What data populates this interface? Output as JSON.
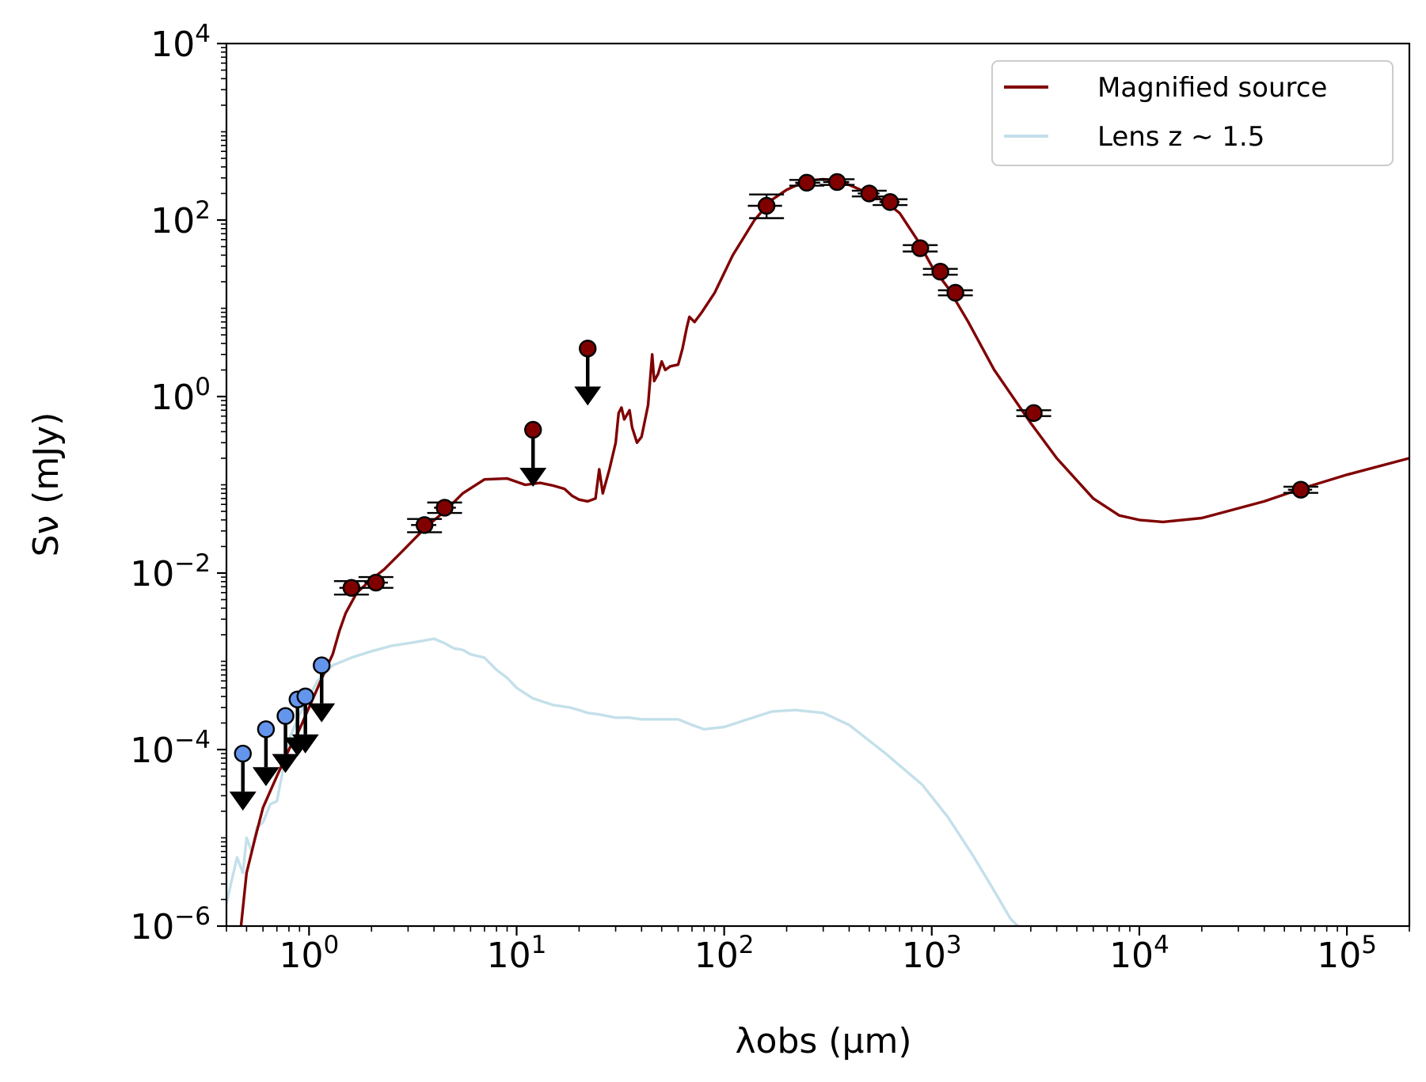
{
  "chart_data": {
    "type": "line",
    "x_scale": "log",
    "y_scale": "log",
    "xlim": [
      0.4,
      200000
    ],
    "ylim": [
      1e-06,
      10000
    ],
    "xlabel": "λobs (μm)",
    "ylabel": "Sν (mJy)",
    "x_ticks": [
      {
        "base": "10",
        "exp": "0",
        "value": 1
      },
      {
        "base": "10",
        "exp": "1",
        "value": 10
      },
      {
        "base": "10",
        "exp": "2",
        "value": 100
      },
      {
        "base": "10",
        "exp": "3",
        "value": 1000
      },
      {
        "base": "10",
        "exp": "4",
        "value": 10000
      },
      {
        "base": "10",
        "exp": "5",
        "value": 100000
      }
    ],
    "y_ticks": [
      {
        "base": "10",
        "exp": "−6",
        "value": 1e-06
      },
      {
        "base": "10",
        "exp": "−4",
        "value": 0.0001
      },
      {
        "base": "10",
        "exp": "−2",
        "value": 0.01
      },
      {
        "base": "10",
        "exp": "0",
        "value": 1
      },
      {
        "base": "10",
        "exp": "2",
        "value": 100
      },
      {
        "base": "10",
        "exp": "4",
        "value": 10000
      }
    ],
    "grid": false,
    "legend_position": "top-right",
    "series": [
      {
        "name": "Magnified source",
        "color": "#800000",
        "points": [
          [
            0.47,
            1e-06
          ],
          [
            0.5,
            4e-06
          ],
          [
            0.55,
            1e-05
          ],
          [
            0.6,
            2.2e-05
          ],
          [
            0.7,
            5e-05
          ],
          [
            0.8,
            0.0001
          ],
          [
            0.9,
            0.00017
          ],
          [
            1.0,
            0.0003
          ],
          [
            1.1,
            0.0005
          ],
          [
            1.2,
            0.0008
          ],
          [
            1.3,
            0.0012
          ],
          [
            1.4,
            0.0022
          ],
          [
            1.5,
            0.0035
          ],
          [
            1.7,
            0.006
          ],
          [
            2.0,
            0.0085
          ],
          [
            2.3,
            0.011
          ],
          [
            2.7,
            0.016
          ],
          [
            3.2,
            0.024
          ],
          [
            3.7,
            0.034
          ],
          [
            4.5,
            0.05
          ],
          [
            5.5,
            0.08
          ],
          [
            7,
            0.115
          ],
          [
            9,
            0.118
          ],
          [
            11,
            0.1
          ],
          [
            13,
            0.105
          ],
          [
            15,
            0.098
          ],
          [
            17,
            0.09
          ],
          [
            18.5,
            0.075
          ],
          [
            20,
            0.068
          ],
          [
            22,
            0.065
          ],
          [
            24,
            0.07
          ],
          [
            25,
            0.15
          ],
          [
            26,
            0.08
          ],
          [
            28,
            0.15
          ],
          [
            30,
            0.3
          ],
          [
            31,
            0.65
          ],
          [
            32,
            0.75
          ],
          [
            33,
            0.55
          ],
          [
            35,
            0.7
          ],
          [
            36,
            0.45
          ],
          [
            38,
            0.3
          ],
          [
            40,
            0.35
          ],
          [
            43,
            0.8
          ],
          [
            45,
            3
          ],
          [
            46,
            1.5
          ],
          [
            48,
            1.8
          ],
          [
            50,
            2.5
          ],
          [
            52,
            2
          ],
          [
            55,
            2.2
          ],
          [
            60,
            2.3
          ],
          [
            63,
            3.5
          ],
          [
            66,
            6
          ],
          [
            68,
            8
          ],
          [
            72,
            7
          ],
          [
            78,
            9
          ],
          [
            90,
            15
          ],
          [
            110,
            40
          ],
          [
            140,
            100
          ],
          [
            170,
            170
          ],
          [
            200,
            220
          ],
          [
            250,
            280
          ],
          [
            300,
            290
          ],
          [
            350,
            280
          ],
          [
            400,
            250
          ],
          [
            500,
            200
          ],
          [
            600,
            160
          ],
          [
            700,
            120
          ],
          [
            850,
            60
          ],
          [
            1000,
            30
          ],
          [
            1200,
            17
          ],
          [
            1500,
            7
          ],
          [
            2000,
            2
          ],
          [
            3000,
            0.5
          ],
          [
            4000,
            0.2
          ],
          [
            6000,
            0.07
          ],
          [
            8000,
            0.045
          ],
          [
            10000,
            0.04
          ],
          [
            13000,
            0.038
          ],
          [
            20000,
            0.042
          ],
          [
            40000,
            0.065
          ],
          [
            60000,
            0.09
          ],
          [
            100000,
            0.13
          ],
          [
            200000,
            0.2
          ]
        ]
      },
      {
        "name": "Lens z ∼ 1.5",
        "color": "#c3e0ea",
        "points": [
          [
            0.4,
            1.8e-06
          ],
          [
            0.42,
            3e-06
          ],
          [
            0.45,
            6e-06
          ],
          [
            0.48,
            4e-06
          ],
          [
            0.5,
            1e-05
          ],
          [
            0.53,
            7e-06
          ],
          [
            0.56,
            1.3e-05
          ],
          [
            0.6,
            1.5e-05
          ],
          [
            0.65,
            2.4e-05
          ],
          [
            0.7,
            2.6e-05
          ],
          [
            0.75,
            6e-05
          ],
          [
            0.8,
            0.00013
          ],
          [
            0.9,
            0.00025
          ],
          [
            1.0,
            0.0004
          ],
          [
            1.1,
            0.0006
          ],
          [
            1.3,
            0.0009
          ],
          [
            1.6,
            0.0011
          ],
          [
            2.0,
            0.0013
          ],
          [
            2.5,
            0.0015
          ],
          [
            3.0,
            0.0016
          ],
          [
            3.5,
            0.0017
          ],
          [
            4.0,
            0.0018
          ],
          [
            4.5,
            0.0016
          ],
          [
            5.0,
            0.0014
          ],
          [
            5.5,
            0.00135
          ],
          [
            6,
            0.0012
          ],
          [
            7,
            0.0011
          ],
          [
            8,
            0.0008
          ],
          [
            9,
            0.00065
          ],
          [
            10,
            0.0005
          ],
          [
            12,
            0.00038
          ],
          [
            15,
            0.00032
          ],
          [
            18,
            0.0003
          ],
          [
            20,
            0.00028
          ],
          [
            22,
            0.00026
          ],
          [
            25,
            0.00025
          ],
          [
            30,
            0.00023
          ],
          [
            35,
            0.00023
          ],
          [
            40,
            0.00022
          ],
          [
            50,
            0.00022
          ],
          [
            60,
            0.00022
          ],
          [
            70,
            0.00019
          ],
          [
            80,
            0.00017
          ],
          [
            100,
            0.00018
          ],
          [
            130,
            0.00022
          ],
          [
            170,
            0.00027
          ],
          [
            220,
            0.00028
          ],
          [
            300,
            0.00026
          ],
          [
            400,
            0.00019
          ],
          [
            600,
            9e-05
          ],
          [
            900,
            4e-05
          ],
          [
            1200,
            1.7e-05
          ],
          [
            1600,
            6e-06
          ],
          [
            2000,
            2.5e-06
          ],
          [
            2400,
            1.2e-06
          ],
          [
            2600,
            1e-06
          ]
        ]
      }
    ],
    "detections": [
      {
        "x": 1.6,
        "y": 0.0068,
        "xerr": [
          1.4,
          1.85
        ],
        "yerr": [
          0.0057,
          0.0081
        ]
      },
      {
        "x": 2.1,
        "y": 0.0078,
        "xerr": [
          1.85,
          2.4
        ],
        "yerr": [
          0.0068,
          0.009
        ]
      },
      {
        "x": 3.6,
        "y": 0.035,
        "xerr": [
          3.1,
          4.1
        ],
        "yerr": [
          0.029,
          0.041
        ]
      },
      {
        "x": 4.5,
        "y": 0.055,
        "xerr": [
          4.0,
          5.1
        ],
        "yerr": [
          0.048,
          0.063
        ]
      },
      {
        "x": 160,
        "y": 145,
        "xerr": [
          130,
          190
        ],
        "yerr": [
          105,
          195
        ]
      },
      {
        "x": 250,
        "y": 265,
        "xerr": [
          220,
          290
        ],
        "yerr": [
          245,
          285
        ]
      },
      {
        "x": 350,
        "y": 270,
        "xerr": [
          300,
          400
        ],
        "yerr": [
          250,
          290
        ]
      },
      {
        "x": 500,
        "y": 200,
        "xerr": [
          440,
          560
        ],
        "yerr": [
          185,
          215
        ]
      },
      {
        "x": 630,
        "y": 160,
        "xerr": [
          560,
          700
        ],
        "yerr": [
          148,
          172
        ]
      },
      {
        "x": 880,
        "y": 48,
        "xerr": [
          800,
          970
        ],
        "yerr": [
          44,
          52
        ]
      },
      {
        "x": 1100,
        "y": 26,
        "xerr": [
          1000,
          1200
        ],
        "yerr": [
          24,
          28
        ]
      },
      {
        "x": 1300,
        "y": 15,
        "xerr": [
          1200,
          1420
        ],
        "yerr": [
          14,
          16
        ]
      },
      {
        "x": 3100,
        "y": 0.65,
        "xerr": [
          2800,
          3400
        ],
        "yerr": [
          0.6,
          0.7
        ]
      },
      {
        "x": 60000,
        "y": 0.088,
        "xerr": [
          52000,
          68000
        ],
        "yerr": [
          0.081,
          0.095
        ]
      }
    ],
    "upper_limits_source": [
      {
        "x": 12,
        "y": 0.42
      },
      {
        "x": 22,
        "y": 3.5
      }
    ],
    "upper_limits_lens": [
      {
        "x": 0.48,
        "y": 9e-05
      },
      {
        "x": 0.62,
        "y": 0.00017
      },
      {
        "x": 0.77,
        "y": 0.00024
      },
      {
        "x": 0.88,
        "y": 0.00037
      },
      {
        "x": 0.96,
        "y": 0.0004
      },
      {
        "x": 1.15,
        "y": 0.0009
      }
    ],
    "marker_colors": {
      "source_fill": "#800000",
      "lens_fill": "#6495ed",
      "edge": "#000000"
    }
  }
}
